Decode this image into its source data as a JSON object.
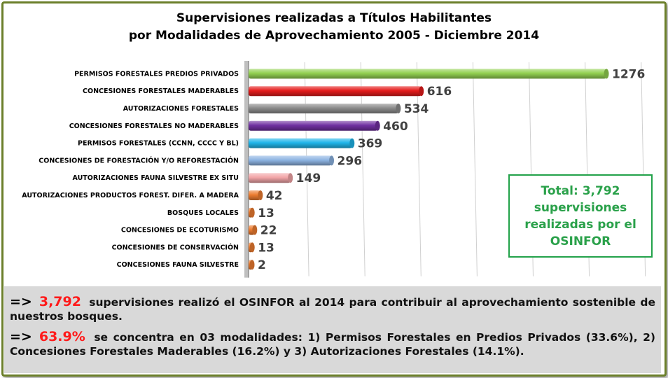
{
  "chart_data": {
    "type": "bar",
    "orientation": "horizontal",
    "title_lines": [
      "Supervisiones realizadas a Títulos Habilitantes",
      "por Modalidades de Aprovechamiento 2005 - Diciembre 2014"
    ],
    "categories": [
      "PERMISOS FORESTALES PREDIOS PRIVADOS",
      "CONCESIONES FORESTALES MADERABLES",
      "AUTORIZACIONES FORESTALES",
      "CONCESIONES FORESTALES NO MADERABLES",
      "PERMISOS FORESTALES (CCNN, CCCC Y BL)",
      "CONCESIONES DE FORESTACIÓN Y/O REFORESTACIÓN",
      "AUTORIZACIONES FAUNA SILVESTRE EX SITU",
      "AUTORIZACIONES PRODUCTOS FOREST. DIFER. A MADERA",
      "BOSQUES LOCALES",
      "CONCESIONES DE ECOTURISMO",
      "CONCESIONES DE CONSERVACIÓN",
      "CONCESIONES FAUNA SILVESTRE"
    ],
    "values": [
      1276,
      616,
      534,
      460,
      369,
      296,
      149,
      42,
      13,
      22,
      13,
      2
    ],
    "colors": [
      "#92d050",
      "#e51c1c",
      "#8c8c8c",
      "#7030a0",
      "#1fb5ea",
      "#8db4e2",
      "#f2a5a8",
      "#ed7d31",
      "#ed7d31",
      "#ed7d31",
      "#ed7d31",
      "#ed7d31"
    ],
    "xlim": [
      0,
      1400
    ],
    "grid": true,
    "data_labels": true
  },
  "total_box": {
    "lines": [
      "Total: 3,792",
      "supervisiones",
      "realizadas por el",
      "OSINFOR"
    ],
    "color": "#2aa14a"
  },
  "notes": [
    {
      "arrow": "=>",
      "highlight": "3,792",
      "text": "supervisiones realizó el OSINFOR al 2014 para contribuir al aprovechamiento sostenible de nuestros bosques."
    },
    {
      "arrow": "=>",
      "highlight": "63.9%",
      "text": "se concentra en 03 modalidades: 1) Permisos Forestales en Predios Privados (33.6%), 2) Concesiones Forestales Maderables (16.2%) y 3) Autorizaciones Forestales (14.1%)."
    }
  ],
  "highlight_color": "#ff1a1a"
}
